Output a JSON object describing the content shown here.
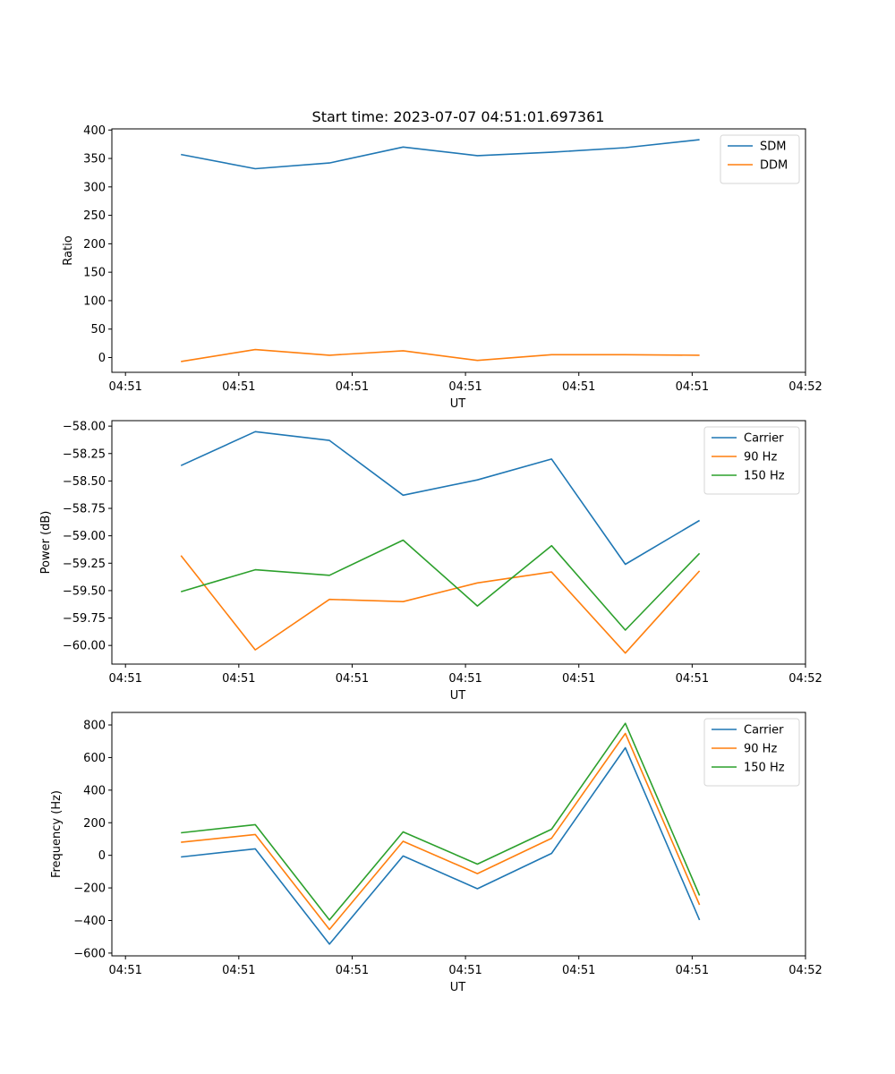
{
  "figure": {
    "title": "Start time: 2023-07-07 04:51:01.697361"
  },
  "chart_data": [
    {
      "type": "line",
      "title": "Start time: 2023-07-07 04:51:01.697361",
      "xlabel": "UT",
      "ylabel": "Ratio",
      "x_tick_labels": [
        "04:51",
        "04:51",
        "04:51",
        "04:51",
        "04:51",
        "04:51",
        "04:52"
      ],
      "x_range": [
        -0.12,
        6.0
      ],
      "x": [
        0.49,
        1.145,
        1.8,
        2.45,
        3.105,
        3.76,
        4.41,
        5.065
      ],
      "y_ticks": [
        0,
        50,
        100,
        150,
        200,
        250,
        300,
        350,
        400
      ],
      "ylim": [
        -26,
        402
      ],
      "legend": "top-right",
      "grid": false,
      "series": [
        {
          "name": "SDM",
          "color": "#1f77b4",
          "values": [
            357,
            332,
            342,
            370,
            355,
            361,
            369,
            383
          ]
        },
        {
          "name": "DDM",
          "color": "#ff7f0e",
          "values": [
            -7,
            14,
            4,
            12,
            -5,
            5,
            5,
            4
          ]
        }
      ]
    },
    {
      "type": "line",
      "title": "",
      "xlabel": "UT",
      "ylabel": "Power (dB)",
      "x_tick_labels": [
        "04:51",
        "04:51",
        "04:51",
        "04:51",
        "04:51",
        "04:51",
        "04:52"
      ],
      "x_range": [
        -0.12,
        6.0
      ],
      "x": [
        0.49,
        1.145,
        1.8,
        2.45,
        3.105,
        3.76,
        4.41,
        5.065
      ],
      "y_ticks": [
        -60.0,
        -59.75,
        -59.5,
        -59.25,
        -59.0,
        -58.75,
        -58.5,
        -58.25,
        -58.0
      ],
      "y_tick_labels": [
        "−60.00",
        "−59.75",
        "−59.50",
        "−59.25",
        "−59.00",
        "−58.75",
        "−58.50",
        "−58.25",
        "−58.00"
      ],
      "ylim": [
        -60.17,
        -57.95
      ],
      "legend": "top-right",
      "grid": false,
      "series": [
        {
          "name": "Carrier",
          "color": "#1f77b4",
          "values": [
            -58.36,
            -58.05,
            -58.13,
            -58.63,
            -58.49,
            -58.3,
            -59.26,
            -58.86
          ]
        },
        {
          "name": "90 Hz",
          "color": "#ff7f0e",
          "values": [
            -59.18,
            -60.04,
            -59.58,
            -59.6,
            -59.43,
            -59.33,
            -60.07,
            -59.32
          ]
        },
        {
          "name": "150 Hz",
          "color": "#2ca02c",
          "values": [
            -59.51,
            -59.31,
            -59.36,
            -59.04,
            -59.64,
            -59.09,
            -59.86,
            -59.16
          ]
        }
      ]
    },
    {
      "type": "line",
      "title": "",
      "xlabel": "UT",
      "ylabel": "Frequency (Hz)",
      "x_tick_labels": [
        "04:51",
        "04:51",
        "04:51",
        "04:51",
        "04:51",
        "04:51",
        "04:52"
      ],
      "x_range": [
        -0.12,
        6.0
      ],
      "x": [
        0.49,
        1.145,
        1.8,
        2.45,
        3.105,
        3.76,
        4.41,
        5.065
      ],
      "y_ticks": [
        -600,
        -400,
        -200,
        0,
        200,
        400,
        600,
        800
      ],
      "y_tick_labels": [
        "−600",
        "−400",
        "−200",
        "0",
        "200",
        "400",
        "600",
        "800"
      ],
      "ylim": [
        -617,
        877
      ],
      "legend": "top-right",
      "grid": false,
      "series": [
        {
          "name": "Carrier",
          "color": "#1f77b4",
          "values": [
            -10,
            40,
            -545,
            -4,
            -205,
            12,
            660,
            -397
          ]
        },
        {
          "name": "90 Hz",
          "color": "#ff7f0e",
          "values": [
            80,
            128,
            -455,
            86,
            -112,
            105,
            748,
            -304
          ]
        },
        {
          "name": "150 Hz",
          "color": "#2ca02c",
          "values": [
            138,
            188,
            -397,
            144,
            -54,
            160,
            810,
            -246
          ]
        }
      ]
    }
  ]
}
